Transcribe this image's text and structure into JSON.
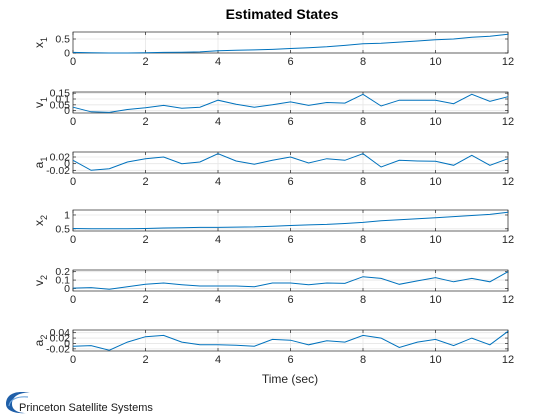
{
  "figure": {
    "title": "Estimated States",
    "xlabel": "Time (sec)"
  },
  "logo": {
    "text": "Princeton Satellite Systems",
    "color": "#1f5fa8"
  },
  "colors": {
    "line": "#0072bd",
    "grid": "#e6e6e6",
    "axis": "#262626"
  },
  "chart_data": [
    {
      "type": "line",
      "ylabel": "x1",
      "xlim": [
        0,
        12
      ],
      "ylim": [
        0,
        0.75
      ],
      "x_ticks": [
        "0",
        "2",
        "4",
        "6",
        "8",
        "10",
        "12"
      ],
      "y_ticks": [
        0,
        0.5
      ],
      "y_tick_labels": [
        "0",
        "0.5"
      ],
      "grid": true,
      "x": [
        0,
        0.5,
        1,
        1.5,
        2,
        2.5,
        3,
        3.5,
        4,
        4.5,
        5,
        5.5,
        6,
        6.5,
        7,
        7.5,
        8,
        8.5,
        9,
        9.5,
        10,
        10.5,
        11,
        11.5,
        12
      ],
      "values": [
        0.02,
        0.01,
        0.0,
        0.0,
        0.01,
        0.02,
        0.03,
        0.04,
        0.08,
        0.1,
        0.11,
        0.13,
        0.16,
        0.19,
        0.22,
        0.27,
        0.33,
        0.35,
        0.39,
        0.43,
        0.47,
        0.5,
        0.56,
        0.6,
        0.67
      ]
    },
    {
      "type": "line",
      "ylabel": "v1",
      "xlim": [
        0,
        12
      ],
      "ylim": [
        -0.02,
        0.16
      ],
      "x_ticks": [
        "0",
        "2",
        "4",
        "6",
        "8",
        "10",
        "12"
      ],
      "y_ticks": [
        0,
        0.05,
        0.1,
        0.15
      ],
      "y_tick_labels": [
        "0",
        "0.05",
        "0.1",
        "0.15"
      ],
      "grid": true,
      "x": [
        0,
        0.5,
        1,
        1.5,
        2,
        2.5,
        3,
        3.5,
        4,
        4.5,
        5,
        5.5,
        6,
        6.5,
        7,
        7.5,
        8,
        8.5,
        9,
        9.5,
        10,
        10.5,
        11,
        11.5,
        12
      ],
      "values": [
        0.03,
        -0.01,
        -0.015,
        0.01,
        0.025,
        0.045,
        0.02,
        0.03,
        0.09,
        0.055,
        0.03,
        0.05,
        0.075,
        0.045,
        0.07,
        0.065,
        0.14,
        0.04,
        0.09,
        0.09,
        0.09,
        0.06,
        0.14,
        0.08,
        0.12
      ]
    },
    {
      "type": "line",
      "ylabel": "a1",
      "xlim": [
        0,
        12
      ],
      "ylim": [
        -0.028,
        0.035
      ],
      "x_ticks": [
        "0",
        "2",
        "4",
        "6",
        "8",
        "10",
        "12"
      ],
      "y_ticks": [
        -0.02,
        0,
        0.02
      ],
      "y_tick_labels": [
        "-0.02",
        "0",
        "0.02"
      ],
      "grid": true,
      "x": [
        0,
        0.5,
        1,
        1.5,
        2,
        2.5,
        3,
        3.5,
        4,
        4.5,
        5,
        5.5,
        6,
        6.5,
        7,
        7.5,
        8,
        8.5,
        9,
        9.5,
        10,
        10.5,
        11,
        11.5,
        12
      ],
      "values": [
        0.01,
        -0.02,
        -0.015,
        0.005,
        0.015,
        0.02,
        0.0,
        0.005,
        0.03,
        0.008,
        -0.002,
        0.01,
        0.02,
        0.002,
        0.015,
        0.01,
        0.03,
        -0.01,
        0.01,
        0.008,
        0.007,
        -0.005,
        0.025,
        -0.005,
        0.015
      ]
    },
    {
      "type": "line",
      "ylabel": "x2",
      "xlim": [
        0,
        12
      ],
      "ylim": [
        0.42,
        1.18
      ],
      "x_ticks": [
        "0",
        "2",
        "4",
        "6",
        "8",
        "10",
        "12"
      ],
      "y_ticks": [
        0.5,
        1
      ],
      "y_tick_labels": [
        "0.5",
        "1"
      ],
      "grid": true,
      "x": [
        0,
        0.5,
        1,
        1.5,
        2,
        2.5,
        3,
        3.5,
        4,
        4.5,
        5,
        5.5,
        6,
        6.5,
        7,
        7.5,
        8,
        8.5,
        9,
        9.5,
        10,
        10.5,
        11,
        11.5,
        12
      ],
      "values": [
        0.51,
        0.5,
        0.5,
        0.5,
        0.51,
        0.53,
        0.54,
        0.55,
        0.55,
        0.56,
        0.57,
        0.59,
        0.62,
        0.64,
        0.66,
        0.69,
        0.73,
        0.79,
        0.83,
        0.86,
        0.9,
        0.94,
        0.98,
        1.02,
        1.1
      ]
    },
    {
      "type": "line",
      "ylabel": "v2",
      "xlim": [
        0,
        12
      ],
      "ylim": [
        -0.03,
        0.22
      ],
      "x_ticks": [
        "0",
        "2",
        "4",
        "6",
        "8",
        "10",
        "12"
      ],
      "y_ticks": [
        0,
        0.1,
        0.2
      ],
      "y_tick_labels": [
        "0",
        "0.1",
        "0.2"
      ],
      "grid": true,
      "x": [
        0,
        0.5,
        1,
        1.5,
        2,
        2.5,
        3,
        3.5,
        4,
        4.5,
        5,
        5.5,
        6,
        6.5,
        7,
        7.5,
        8,
        8.5,
        9,
        9.5,
        10,
        10.5,
        11,
        11.5,
        12
      ],
      "values": [
        0.005,
        0.01,
        -0.01,
        0.02,
        0.05,
        0.065,
        0.045,
        0.03,
        0.03,
        0.03,
        0.02,
        0.065,
        0.065,
        0.045,
        0.065,
        0.06,
        0.14,
        0.12,
        0.05,
        0.09,
        0.13,
        0.08,
        0.12,
        0.08,
        0.2
      ]
    },
    {
      "type": "line",
      "ylabel": "a2",
      "xlim": [
        0,
        12
      ],
      "ylim": [
        -0.028,
        0.05
      ],
      "x_ticks": [
        "0",
        "2",
        "4",
        "6",
        "8",
        "10",
        "12"
      ],
      "y_ticks": [
        -0.02,
        0,
        0.02,
        0.04
      ],
      "y_tick_labels": [
        "-0.02",
        "0",
        "0.02",
        "0.04"
      ],
      "grid": true,
      "x": [
        0,
        0.5,
        1,
        1.5,
        2,
        2.5,
        3,
        3.5,
        4,
        4.5,
        5,
        5.5,
        6,
        6.5,
        7,
        7.5,
        8,
        8.5,
        9,
        9.5,
        10,
        10.5,
        11,
        11.5,
        12
      ],
      "values": [
        -0.01,
        -0.008,
        -0.025,
        0.005,
        0.025,
        0.03,
        0.005,
        -0.005,
        -0.005,
        -0.007,
        -0.01,
        0.015,
        0.012,
        -0.005,
        0.01,
        0.005,
        0.03,
        0.02,
        -0.015,
        0.005,
        0.015,
        -0.008,
        0.02,
        -0.005,
        0.045
      ]
    }
  ]
}
